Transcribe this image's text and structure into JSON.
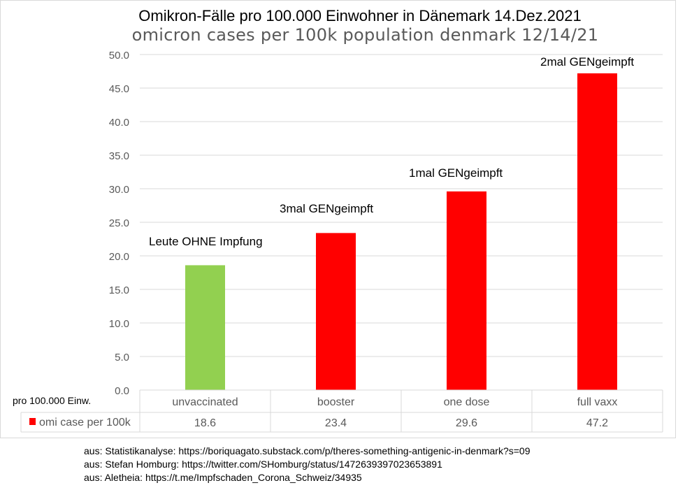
{
  "chart_data": {
    "type": "bar",
    "title": "Omikron-Fälle pro 100.000 Einwohner in Dänemark 14.Dez.2021",
    "subtitle": "omicron cases per 100k population denmark 12/14/21",
    "categories": [
      "unvaccinated",
      "booster",
      "one dose",
      "full vaxx"
    ],
    "series": [
      {
        "name": "omi case per 100k",
        "values": [
          18.6,
          23.4,
          29.6,
          47.2
        ],
        "value_labels": [
          "18.6",
          "23.4",
          "29.6",
          "47.2"
        ]
      }
    ],
    "bar_colors": [
      "#92d050",
      "#ff0000",
      "#ff0000",
      "#ff0000"
    ],
    "annotations": [
      "Leute OHNE Impfung",
      "3mal GENgeimpft",
      "1mal GENgeimpft",
      "2mal GENgeimpft"
    ],
    "ylim": [
      0,
      50
    ],
    "yticks": [
      "0.0",
      "5.0",
      "10.0",
      "15.0",
      "20.0",
      "25.0",
      "30.0",
      "35.0",
      "40.0",
      "45.0",
      "50.0"
    ],
    "ylabel": "pro 100.000 Einw.",
    "grid": true,
    "legend": "data-table"
  },
  "sources": [
    "aus: Statistikanalyse: https://boriquagato.substack.com/p/theres-something-antigenic-in-denmark?s=09",
    "aus: Stefan Homburg: https://twitter.com/SHomburg/status/1472639397023653891",
    "aus: Aletheia: https://t.me/Impfschaden_Corona_Schweiz/34935"
  ]
}
